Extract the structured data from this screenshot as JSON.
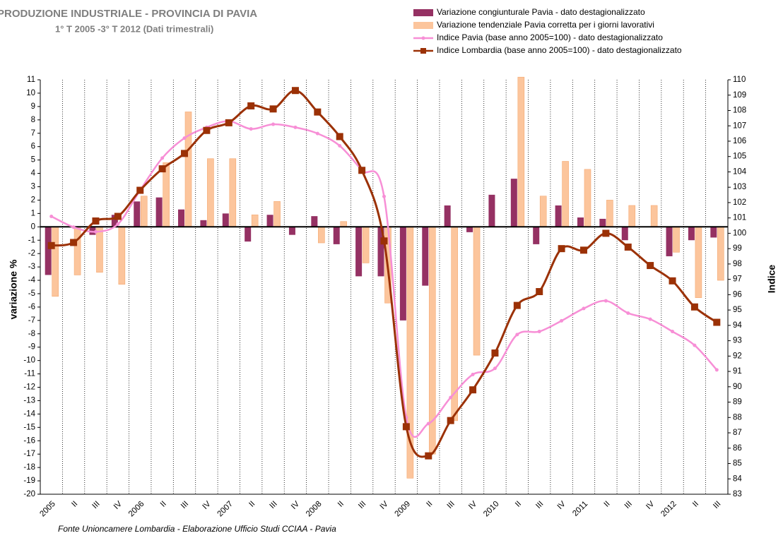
{
  "chart_data": {
    "type": "bar-line",
    "title": "PRODUZIONE INDUSTRIALE  - PROVINCIA DI PAVIA",
    "subtitle": "1° T 2005 -3° T 2012 (Dati trimestrali)",
    "source": "Fonte  Unioncamere Lombardia -   Elaborazione Ufficio Studi CCIAA - Pavia",
    "y_label": "variazione %",
    "y2_label": "Indice",
    "categories": [
      "2005",
      "II",
      "III",
      "IV",
      "2006",
      "II",
      "III",
      "IV",
      "2007",
      "II",
      "III",
      "IV",
      "2008",
      "II",
      "III",
      "IV",
      "2009",
      "II",
      "III",
      "IV",
      "2010",
      "II",
      "III",
      "IV",
      "2011",
      "II",
      "III",
      "IV",
      "2012",
      "II",
      "III"
    ],
    "series": [
      {
        "name": "Variazione congiunturale Pavia - dato destagionalizzato",
        "type": "bar",
        "color": "#953163",
        "values": [
          -3.6,
          0,
          -0.6,
          0.9,
          1.9,
          2.2,
          1.3,
          0.5,
          1.0,
          -1.1,
          0.9,
          -0.6,
          0.8,
          -1.3,
          -3.7,
          -3.7,
          -7.0,
          -4.4,
          1.6,
          -0.4,
          2.4,
          3.6,
          -1.3,
          1.6,
          0.7,
          0.6,
          -1.0,
          0,
          -2.2,
          -1.0,
          -0.8
        ]
      },
      {
        "name": "Variazione tendenziale Pavia corretta per i giorni lavorativi",
        "type": "bar",
        "color": "#fcc59c",
        "values": [
          -5.2,
          -3.6,
          -3.4,
          -4.3,
          2.3,
          4.8,
          8.6,
          5.1,
          5.1,
          0.9,
          1.9,
          0,
          -1.2,
          0.4,
          -2.7,
          -5.7,
          -18.8,
          -17.0,
          -14.5,
          -9.6,
          0,
          11.2,
          2.3,
          4.9,
          4.3,
          2.0,
          1.6,
          1.6,
          -1.9,
          -5.3,
          -4.0
        ]
      },
      {
        "name": "Indice Pavia (base anno 2005=100) - dato destagionalizzato",
        "type": "line",
        "axis": "y2",
        "color": "#f78fd6",
        "values": [
          101.1,
          100.4,
          100.1,
          100.6,
          102.8,
          104.9,
          106.2,
          106.9,
          107.3,
          106.8,
          107.1,
          106.9,
          106.5,
          105.7,
          104.1,
          102.4,
          88.0,
          87.6,
          89.3,
          90.8,
          91.2,
          93.4,
          93.6,
          94.3,
          95.1,
          95.6,
          94.8,
          94.4,
          93.6,
          92.7,
          91.1
        ]
      },
      {
        "name": "Indice Lombardia (base anno 2005=100) - dato destagionalizzato",
        "type": "line",
        "axis": "y2",
        "color": "#9b3106",
        "values": [
          99.2,
          99.4,
          100.8,
          101.1,
          102.8,
          104.2,
          105.2,
          106.7,
          107.2,
          108.3,
          108.1,
          109.3,
          107.9,
          106.3,
          104.1,
          99.5,
          87.4,
          85.5,
          87.8,
          89.8,
          92.2,
          95.3,
          96.2,
          99.0,
          98.9,
          100.0,
          99.1,
          97.9,
          96.9,
          95.2,
          94.2
        ]
      }
    ],
    "ylim": [
      -20,
      11
    ],
    "yticks": [
      -20,
      -19,
      -18,
      -17,
      -16,
      -15,
      -14,
      -13,
      -12,
      -11,
      -10,
      -9,
      -8,
      -7,
      -6,
      -5,
      -4,
      -3,
      -2,
      -1,
      0,
      1,
      2,
      3,
      4,
      5,
      6,
      7,
      8,
      9,
      10,
      11
    ],
    "y2lim": [
      83,
      110
    ],
    "y2ticks": [
      83,
      84,
      85,
      86,
      87,
      88,
      89,
      90,
      91,
      92,
      93,
      94,
      95,
      96,
      97,
      98,
      99,
      100,
      101,
      102,
      103,
      104,
      105,
      106,
      107,
      108,
      109,
      110
    ]
  }
}
